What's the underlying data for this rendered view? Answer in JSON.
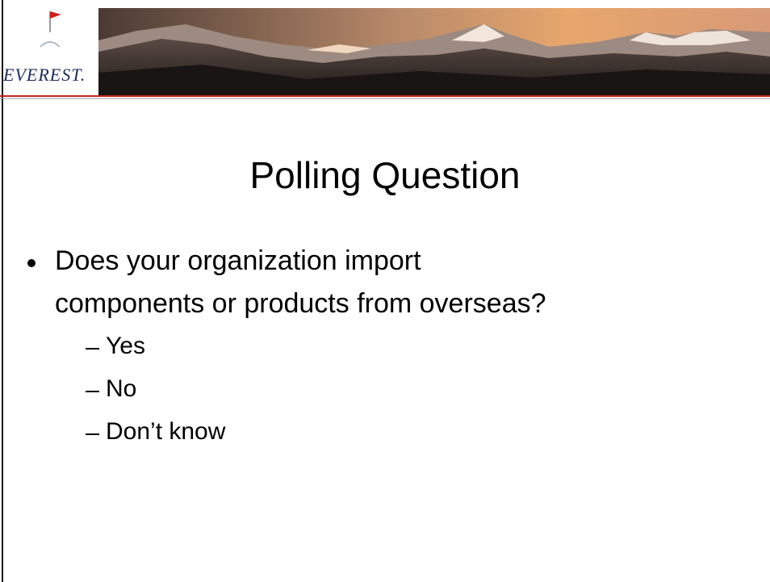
{
  "header": {
    "logo": "EVEREST."
  },
  "slide": {
    "title": "Polling Question",
    "bullet": {
      "lines": [
        "Does your organization import",
        "components or products from overseas?"
      ],
      "options": [
        "Yes",
        "No",
        "Don’t know"
      ]
    }
  }
}
